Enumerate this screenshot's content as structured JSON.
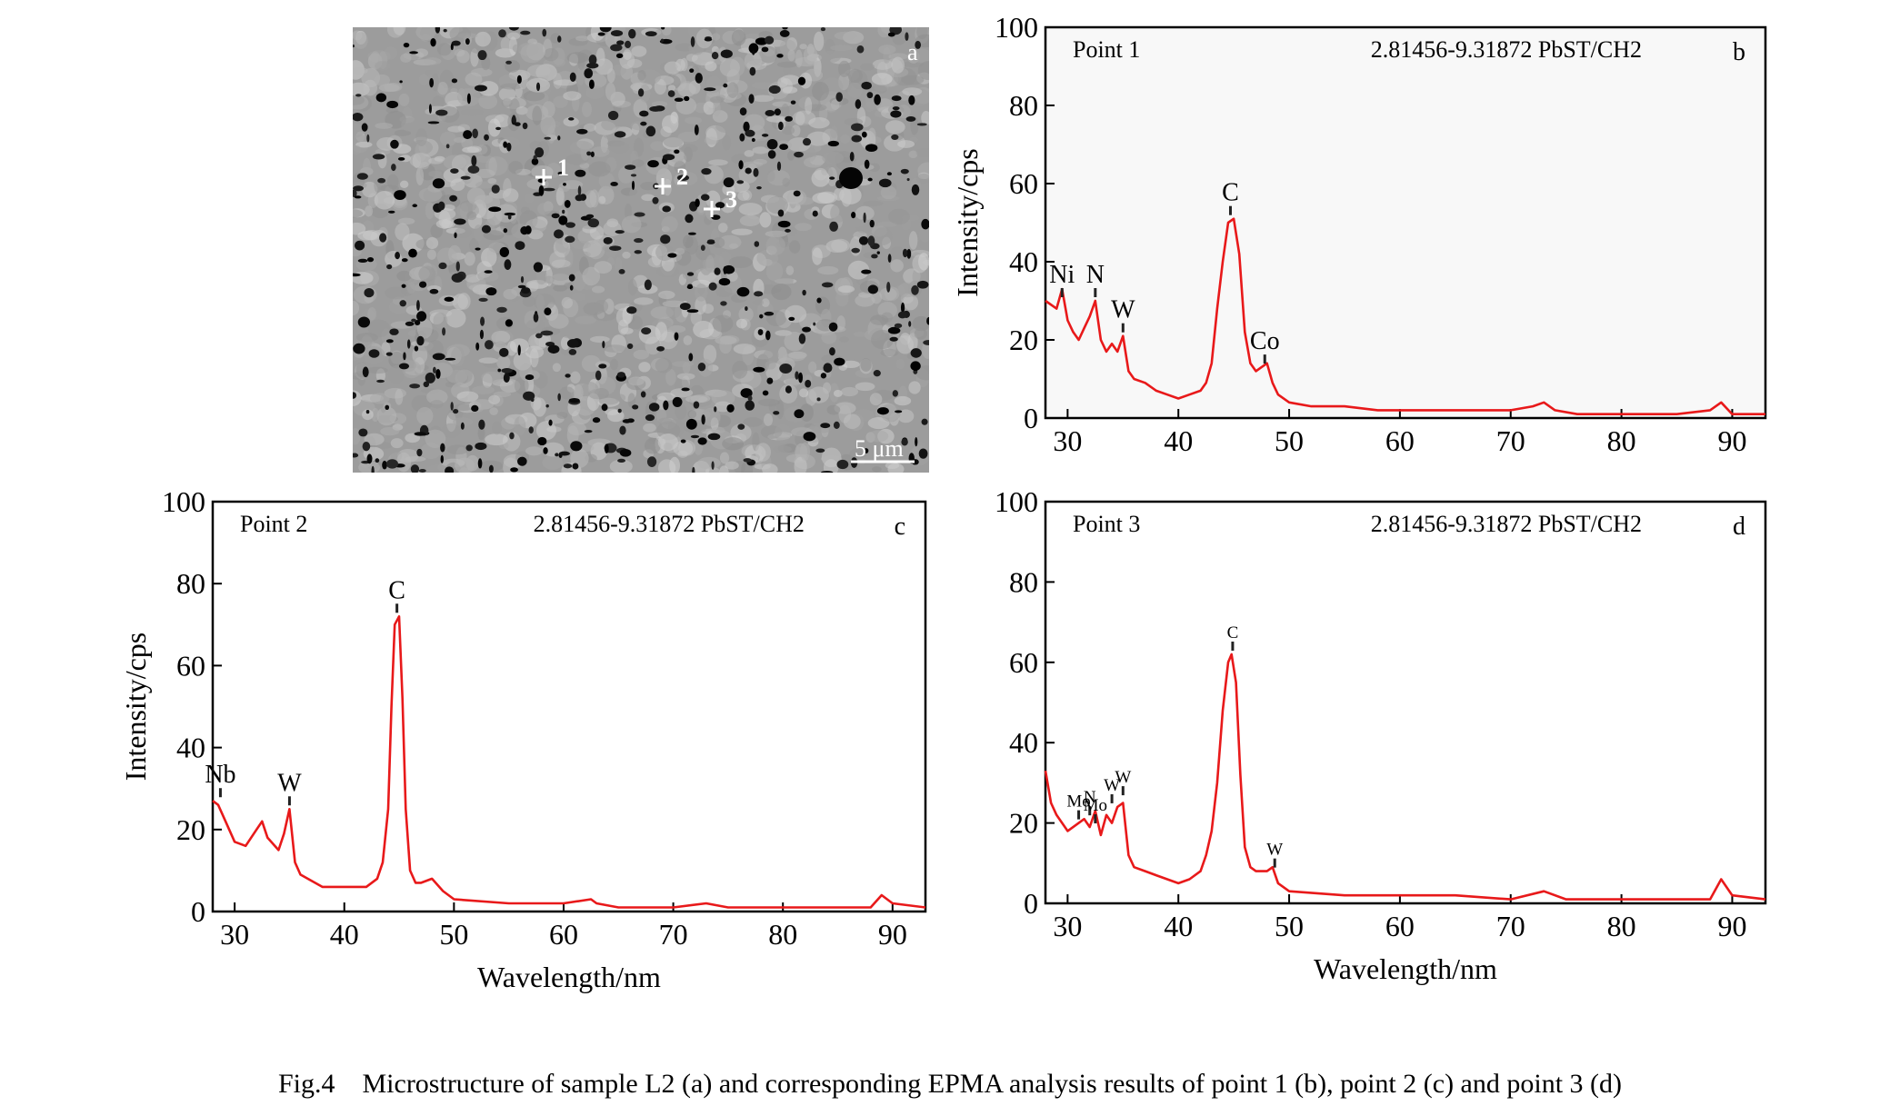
{
  "caption": "Fig.4    Microstructure of sample L2 (a) and corresponding EPMA analysis results of point 1 (b), point 2 (c) and point 3 (d)",
  "micrograph": {
    "panel_letter": "a",
    "scale_bar": "5 μm",
    "points": [
      {
        "label": "1"
      },
      {
        "label": "2"
      },
      {
        "label": "3"
      }
    ]
  },
  "chart_data": [
    {
      "panel": "b",
      "type": "line",
      "point_label": "Point 1",
      "header": "2.81456-9.31872 PbST/CH2",
      "xlabel": "",
      "ylabel": "Intensity/cps",
      "xlim": [
        28,
        93
      ],
      "ylim": [
        0,
        100
      ],
      "xticks": [
        30,
        40,
        50,
        60,
        70,
        80,
        90
      ],
      "yticks": [
        0,
        20,
        40,
        60,
        80,
        100
      ],
      "background": "#f8f8f8",
      "line_color": "#e8191a",
      "x": [
        28,
        29,
        29.5,
        30,
        30.5,
        31,
        31.5,
        32,
        32.5,
        33,
        33.5,
        34,
        34.5,
        35,
        35.5,
        36,
        37,
        38,
        39,
        40,
        41,
        42,
        42.5,
        43,
        43.5,
        44,
        44.5,
        45,
        45.5,
        46,
        46.5,
        47,
        47.5,
        48,
        48.5,
        49,
        50,
        52,
        55,
        58,
        60,
        63,
        65,
        70,
        72,
        73,
        74,
        76,
        80,
        85,
        88,
        89,
        90,
        93
      ],
      "y": [
        30,
        28,
        33,
        25,
        22,
        20,
        23,
        26,
        30,
        20,
        17,
        19,
        17,
        21,
        12,
        10,
        9,
        7,
        6,
        5,
        6,
        7,
        9,
        14,
        28,
        40,
        50,
        51,
        42,
        22,
        14,
        12,
        13,
        14,
        9,
        6,
        4,
        3,
        3,
        2,
        2,
        2,
        2,
        2,
        3,
        4,
        2,
        1,
        1,
        1,
        2,
        4,
        1,
        1
      ],
      "peaks": [
        {
          "label": "Ni",
          "x": 29.5,
          "y": 30
        },
        {
          "label": "N",
          "x": 32.5,
          "y": 30
        },
        {
          "label": "W",
          "x": 35,
          "y": 21
        },
        {
          "label": "C",
          "x": 44.7,
          "y": 51
        },
        {
          "label": "Co",
          "x": 47.8,
          "y": 13
        }
      ]
    },
    {
      "panel": "c",
      "type": "line",
      "point_label": "Point 2",
      "header": "2.81456-9.31872 PbST/CH2",
      "xlabel": "Wavelength/nm",
      "ylabel": "Intensity/cps",
      "xlim": [
        28,
        93
      ],
      "ylim": [
        0,
        100
      ],
      "xticks": [
        30,
        40,
        50,
        60,
        70,
        80,
        90
      ],
      "yticks": [
        0,
        20,
        40,
        60,
        80,
        100
      ],
      "background": "#ffffff",
      "line_color": "#e8191a",
      "x": [
        28,
        28.5,
        29,
        29.5,
        30,
        31,
        32,
        32.5,
        33,
        34,
        34.5,
        35,
        35.5,
        36,
        38,
        40,
        42,
        43,
        43.5,
        44,
        44.3,
        44.6,
        45,
        45.3,
        45.6,
        46,
        46.5,
        47,
        48,
        49,
        50,
        55,
        60,
        62.5,
        63,
        65,
        70,
        73,
        75,
        80,
        88,
        89,
        90,
        93
      ],
      "y": [
        27,
        26,
        23,
        20,
        17,
        16,
        20,
        22,
        18,
        15,
        19,
        25,
        12,
        9,
        6,
        6,
        6,
        8,
        12,
        25,
        50,
        70,
        72,
        52,
        25,
        10,
        7,
        7,
        8,
        5,
        3,
        2,
        2,
        3,
        2,
        1,
        1,
        2,
        1,
        1,
        1,
        4,
        2,
        1
      ],
      "peaks": [
        {
          "label": "Nb",
          "x": 28.7,
          "y": 27
        },
        {
          "label": "W",
          "x": 35,
          "y": 25
        },
        {
          "label": "C",
          "x": 44.8,
          "y": 72
        }
      ]
    },
    {
      "panel": "d",
      "type": "line",
      "point_label": "Point 3",
      "header": "2.81456-9.31872 PbST/CH2",
      "xlabel": "Wavelength/nm",
      "ylabel": "",
      "xlim": [
        28,
        93
      ],
      "ylim": [
        0,
        100
      ],
      "xticks": [
        30,
        40,
        50,
        60,
        70,
        80,
        90
      ],
      "yticks": [
        0,
        20,
        40,
        60,
        80,
        100
      ],
      "background": "#ffffff",
      "line_color": "#e8191a",
      "x": [
        28,
        28.5,
        29,
        30,
        31,
        31.5,
        32,
        32.5,
        33,
        33.5,
        34,
        34.5,
        35,
        35.5,
        36,
        37,
        38,
        39,
        40,
        41,
        42,
        42.5,
        43,
        43.5,
        44,
        44.5,
        44.8,
        45.2,
        45.6,
        46,
        46.5,
        47,
        48,
        48.5,
        49,
        50,
        55,
        60,
        65,
        70,
        73,
        75,
        80,
        88,
        89,
        90,
        93
      ],
      "y": [
        33,
        25,
        22,
        18,
        20,
        21,
        19,
        23,
        17,
        22,
        20,
        24,
        25,
        12,
        9,
        8,
        7,
        6,
        5,
        6,
        8,
        12,
        18,
        30,
        48,
        60,
        62,
        55,
        32,
        14,
        9,
        8,
        8,
        9,
        5,
        3,
        2,
        2,
        2,
        1,
        3,
        1,
        1,
        1,
        6,
        2,
        1
      ],
      "peaks": [
        {
          "label": "Mo",
          "x": 31,
          "y": 20
        },
        {
          "label": "N",
          "x": 32,
          "y": 21
        },
        {
          "label": "Mo",
          "x": 32.5,
          "y": 19
        },
        {
          "label": "W",
          "x": 34,
          "y": 24
        },
        {
          "label": "W",
          "x": 35,
          "y": 26
        },
        {
          "label": "C",
          "x": 44.9,
          "y": 62
        },
        {
          "label": "W",
          "x": 48.7,
          "y": 8
        }
      ]
    }
  ]
}
